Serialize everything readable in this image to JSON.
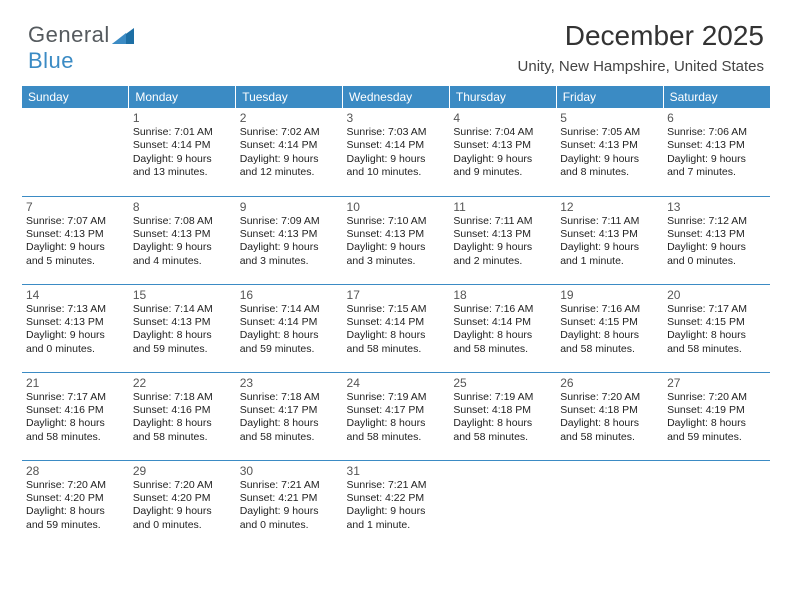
{
  "logo": {
    "part1": "General",
    "part2": "Blue"
  },
  "header": {
    "month_title": "December 2025",
    "location": "Unity, New Hampshire, United States"
  },
  "colors": {
    "brand_blue": "#3b8bc4",
    "text_gray": "#555a5e",
    "white": "#ffffff"
  },
  "weekdays": [
    "Sunday",
    "Monday",
    "Tuesday",
    "Wednesday",
    "Thursday",
    "Friday",
    "Saturday"
  ],
  "weeks": [
    [
      null,
      {
        "n": "1",
        "sr": "Sunrise: 7:01 AM",
        "ss": "Sunset: 4:14 PM",
        "dl": "Daylight: 9 hours and 13 minutes."
      },
      {
        "n": "2",
        "sr": "Sunrise: 7:02 AM",
        "ss": "Sunset: 4:14 PM",
        "dl": "Daylight: 9 hours and 12 minutes."
      },
      {
        "n": "3",
        "sr": "Sunrise: 7:03 AM",
        "ss": "Sunset: 4:14 PM",
        "dl": "Daylight: 9 hours and 10 minutes."
      },
      {
        "n": "4",
        "sr": "Sunrise: 7:04 AM",
        "ss": "Sunset: 4:13 PM",
        "dl": "Daylight: 9 hours and 9 minutes."
      },
      {
        "n": "5",
        "sr": "Sunrise: 7:05 AM",
        "ss": "Sunset: 4:13 PM",
        "dl": "Daylight: 9 hours and 8 minutes."
      },
      {
        "n": "6",
        "sr": "Sunrise: 7:06 AM",
        "ss": "Sunset: 4:13 PM",
        "dl": "Daylight: 9 hours and 7 minutes."
      }
    ],
    [
      {
        "n": "7",
        "sr": "Sunrise: 7:07 AM",
        "ss": "Sunset: 4:13 PM",
        "dl": "Daylight: 9 hours and 5 minutes."
      },
      {
        "n": "8",
        "sr": "Sunrise: 7:08 AM",
        "ss": "Sunset: 4:13 PM",
        "dl": "Daylight: 9 hours and 4 minutes."
      },
      {
        "n": "9",
        "sr": "Sunrise: 7:09 AM",
        "ss": "Sunset: 4:13 PM",
        "dl": "Daylight: 9 hours and 3 minutes."
      },
      {
        "n": "10",
        "sr": "Sunrise: 7:10 AM",
        "ss": "Sunset: 4:13 PM",
        "dl": "Daylight: 9 hours and 3 minutes."
      },
      {
        "n": "11",
        "sr": "Sunrise: 7:11 AM",
        "ss": "Sunset: 4:13 PM",
        "dl": "Daylight: 9 hours and 2 minutes."
      },
      {
        "n": "12",
        "sr": "Sunrise: 7:11 AM",
        "ss": "Sunset: 4:13 PM",
        "dl": "Daylight: 9 hours and 1 minute."
      },
      {
        "n": "13",
        "sr": "Sunrise: 7:12 AM",
        "ss": "Sunset: 4:13 PM",
        "dl": "Daylight: 9 hours and 0 minutes."
      }
    ],
    [
      {
        "n": "14",
        "sr": "Sunrise: 7:13 AM",
        "ss": "Sunset: 4:13 PM",
        "dl": "Daylight: 9 hours and 0 minutes."
      },
      {
        "n": "15",
        "sr": "Sunrise: 7:14 AM",
        "ss": "Sunset: 4:13 PM",
        "dl": "Daylight: 8 hours and 59 minutes."
      },
      {
        "n": "16",
        "sr": "Sunrise: 7:14 AM",
        "ss": "Sunset: 4:14 PM",
        "dl": "Daylight: 8 hours and 59 minutes."
      },
      {
        "n": "17",
        "sr": "Sunrise: 7:15 AM",
        "ss": "Sunset: 4:14 PM",
        "dl": "Daylight: 8 hours and 58 minutes."
      },
      {
        "n": "18",
        "sr": "Sunrise: 7:16 AM",
        "ss": "Sunset: 4:14 PM",
        "dl": "Daylight: 8 hours and 58 minutes."
      },
      {
        "n": "19",
        "sr": "Sunrise: 7:16 AM",
        "ss": "Sunset: 4:15 PM",
        "dl": "Daylight: 8 hours and 58 minutes."
      },
      {
        "n": "20",
        "sr": "Sunrise: 7:17 AM",
        "ss": "Sunset: 4:15 PM",
        "dl": "Daylight: 8 hours and 58 minutes."
      }
    ],
    [
      {
        "n": "21",
        "sr": "Sunrise: 7:17 AM",
        "ss": "Sunset: 4:16 PM",
        "dl": "Daylight: 8 hours and 58 minutes."
      },
      {
        "n": "22",
        "sr": "Sunrise: 7:18 AM",
        "ss": "Sunset: 4:16 PM",
        "dl": "Daylight: 8 hours and 58 minutes."
      },
      {
        "n": "23",
        "sr": "Sunrise: 7:18 AM",
        "ss": "Sunset: 4:17 PM",
        "dl": "Daylight: 8 hours and 58 minutes."
      },
      {
        "n": "24",
        "sr": "Sunrise: 7:19 AM",
        "ss": "Sunset: 4:17 PM",
        "dl": "Daylight: 8 hours and 58 minutes."
      },
      {
        "n": "25",
        "sr": "Sunrise: 7:19 AM",
        "ss": "Sunset: 4:18 PM",
        "dl": "Daylight: 8 hours and 58 minutes."
      },
      {
        "n": "26",
        "sr": "Sunrise: 7:20 AM",
        "ss": "Sunset: 4:18 PM",
        "dl": "Daylight: 8 hours and 58 minutes."
      },
      {
        "n": "27",
        "sr": "Sunrise: 7:20 AM",
        "ss": "Sunset: 4:19 PM",
        "dl": "Daylight: 8 hours and 59 minutes."
      }
    ],
    [
      {
        "n": "28",
        "sr": "Sunrise: 7:20 AM",
        "ss": "Sunset: 4:20 PM",
        "dl": "Daylight: 8 hours and 59 minutes."
      },
      {
        "n": "29",
        "sr": "Sunrise: 7:20 AM",
        "ss": "Sunset: 4:20 PM",
        "dl": "Daylight: 9 hours and 0 minutes."
      },
      {
        "n": "30",
        "sr": "Sunrise: 7:21 AM",
        "ss": "Sunset: 4:21 PM",
        "dl": "Daylight: 9 hours and 0 minutes."
      },
      {
        "n": "31",
        "sr": "Sunrise: 7:21 AM",
        "ss": "Sunset: 4:22 PM",
        "dl": "Daylight: 9 hours and 1 minute."
      },
      null,
      null,
      null
    ]
  ]
}
